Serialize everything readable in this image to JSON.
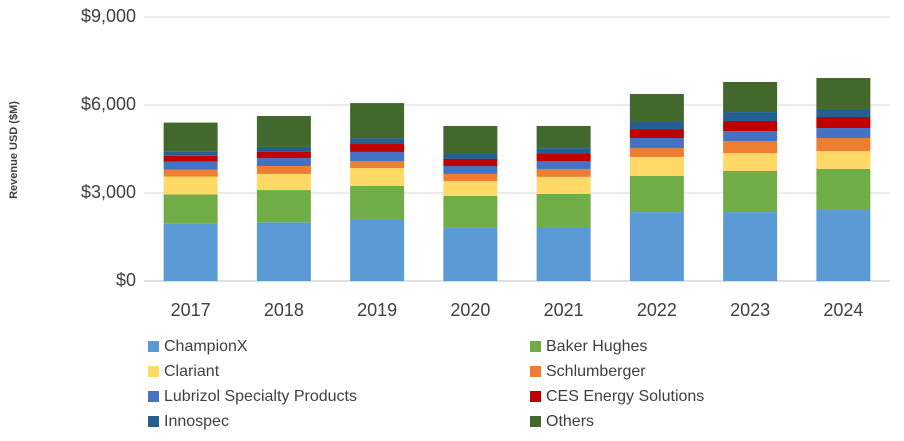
{
  "chart_data": {
    "type": "stacked_bar",
    "y_axis_label": "Revenue USD ($M)",
    "categories": [
      "2017",
      "2018",
      "2019",
      "2020",
      "2021",
      "2022",
      "2023",
      "2024"
    ],
    "series": [
      {
        "name": "ChampionX",
        "color": "#5b9bd5",
        "values": [
          1950,
          2000,
          2080,
          1810,
          1840,
          2350,
          2350,
          2420
        ]
      },
      {
        "name": "Baker Hughes",
        "color": "#70ad47",
        "values": [
          1000,
          1100,
          1160,
          1090,
          1130,
          1230,
          1400,
          1400
        ]
      },
      {
        "name": "Clariant",
        "color": "#ffd966",
        "values": [
          610,
          550,
          610,
          510,
          580,
          650,
          610,
          610
        ]
      },
      {
        "name": "Schlumberger",
        "color": "#ed7d31",
        "values": [
          240,
          270,
          240,
          240,
          270,
          300,
          410,
          445
        ]
      },
      {
        "name": "Lubrizol Specialty Products",
        "color": "#4472c4",
        "values": [
          270,
          270,
          310,
          270,
          270,
          345,
          340,
          340
        ]
      },
      {
        "name": "CES Energy Solutions",
        "color": "#c00000",
        "values": [
          200,
          210,
          270,
          240,
          270,
          305,
          345,
          375
        ]
      },
      {
        "name": "Innospec",
        "color": "#255e91",
        "values": [
          140,
          170,
          200,
          170,
          170,
          240,
          305,
          275
        ]
      },
      {
        "name": "Others",
        "color": "#43682b",
        "values": [
          990,
          1055,
          1195,
          955,
          755,
          955,
          1025,
          1055
        ]
      }
    ],
    "ylim": [
      0,
      9000
    ],
    "yticks": [
      {
        "value": 0,
        "label": "$0"
      },
      {
        "value": 3000,
        "label": "$3,000"
      },
      {
        "value": 6000,
        "label": "$6,000"
      },
      {
        "value": 9000,
        "label": "$9,000"
      }
    ],
    "grid": true,
    "legend": "bottom"
  }
}
